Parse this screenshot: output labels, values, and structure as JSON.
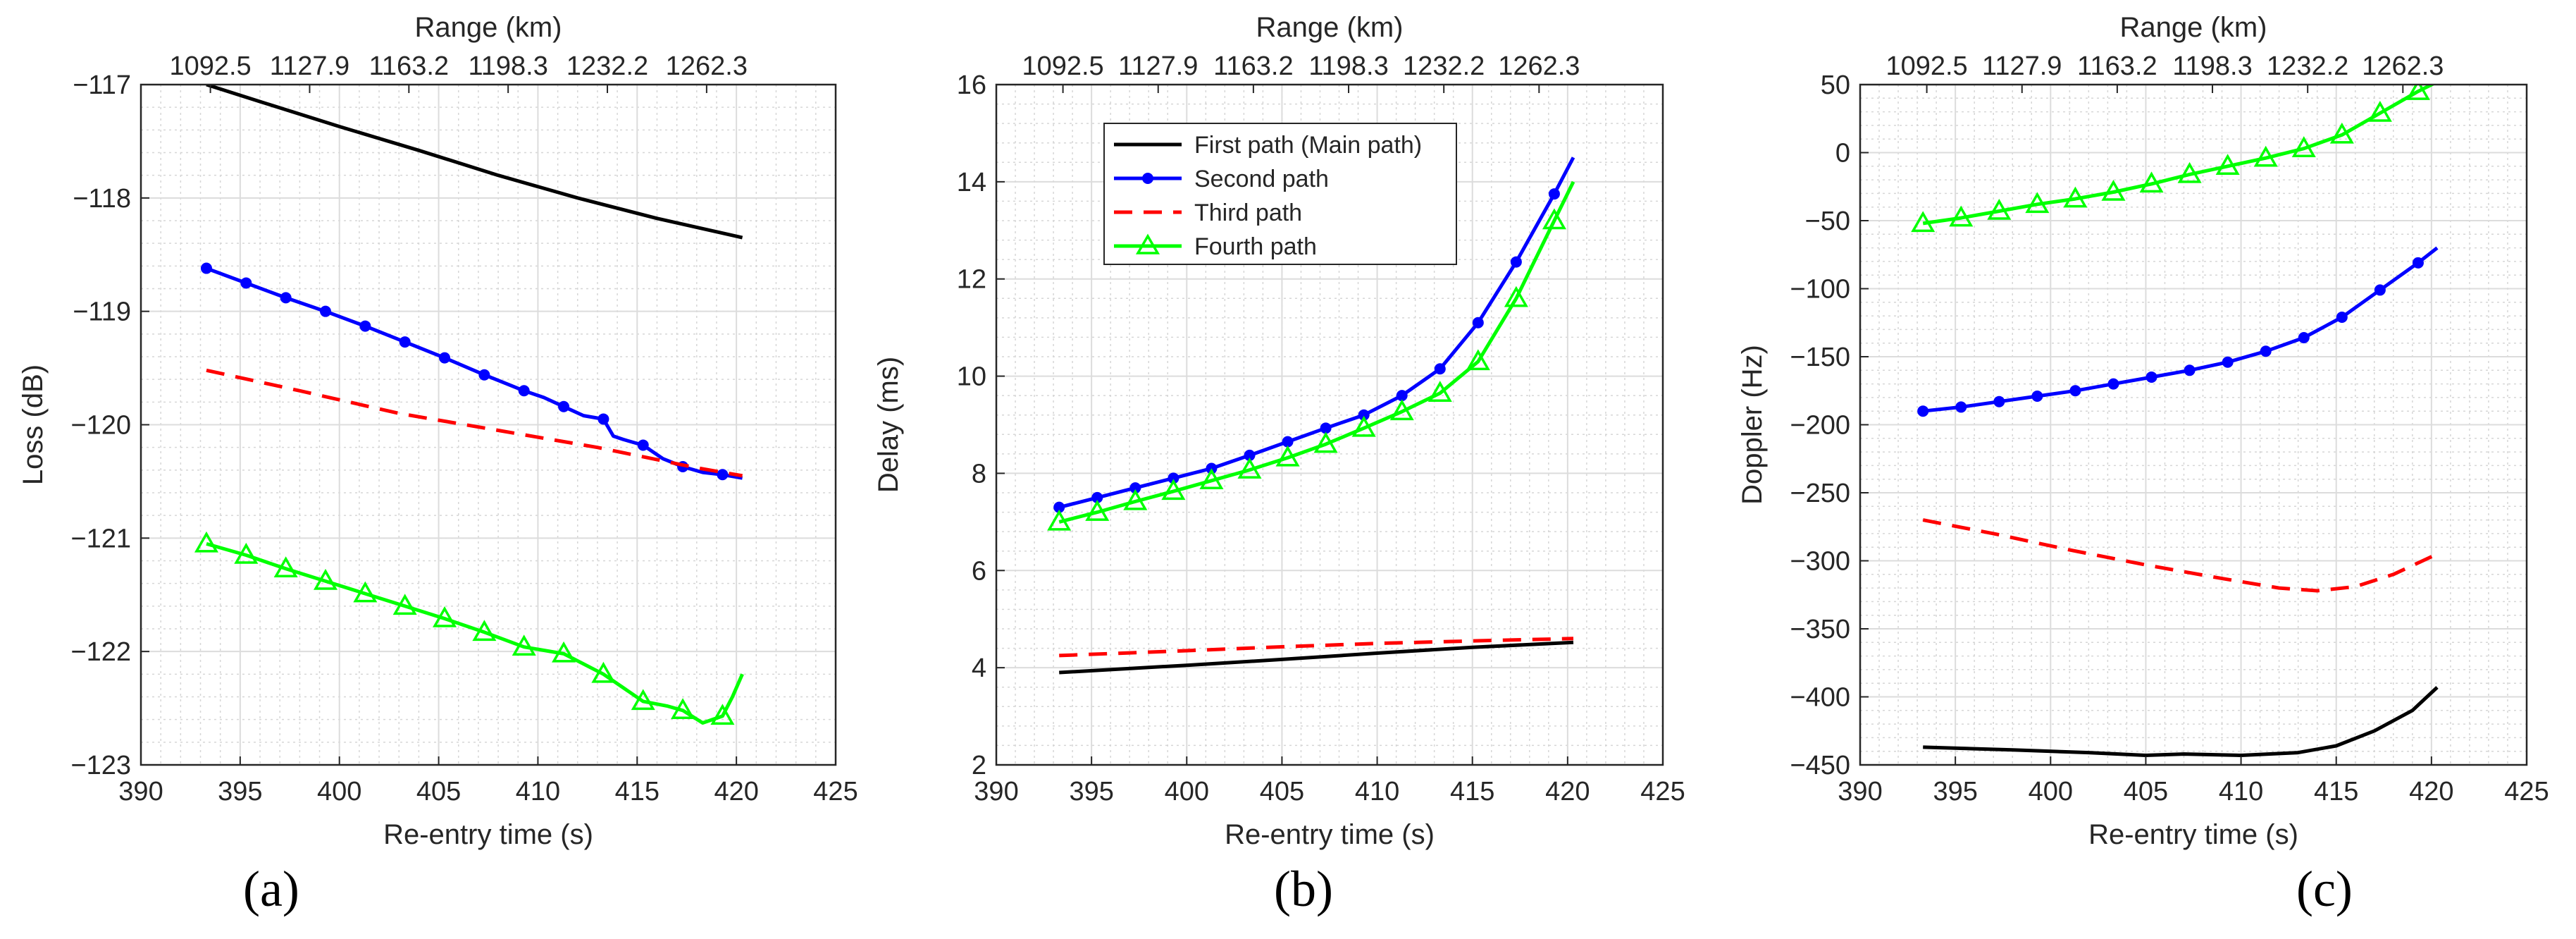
{
  "chart_data": [
    {
      "type": "line",
      "panel_label": "(a)",
      "title": "",
      "xlabel": "Re-entry time (s)",
      "ylabel": "Loss (dB)",
      "top_axis_label": "Range (km)",
      "top_ticks": [
        {
          "x": 393.5,
          "label": "1092.5"
        },
        {
          "x": 398.5,
          "label": "1127.9"
        },
        {
          "x": 403.5,
          "label": "1163.2"
        },
        {
          "x": 408.5,
          "label": "1198.3"
        },
        {
          "x": 413.5,
          "label": "1232.2"
        },
        {
          "x": 418.5,
          "label": "1262.3"
        }
      ],
      "xlim": [
        390,
        425
      ],
      "ylim": [
        -123,
        -117
      ],
      "xticks": [
        390,
        395,
        400,
        405,
        410,
        415,
        420,
        425
      ],
      "yticks": [
        -123,
        -122,
        -121,
        -120,
        -119,
        -118,
        -117
      ],
      "ytick_labels": [
        "−123",
        "−122",
        "−121",
        "−120",
        "−119",
        "−118",
        "−117"
      ],
      "grid": true,
      "series": [
        {
          "name": "First path (Main path)",
          "color": "#000000",
          "style": "solid",
          "marker": "none",
          "x": [
            393.3,
            396,
            400,
            404,
            408,
            412,
            416,
            420.3
          ],
          "y": [
            -117.0,
            -117.15,
            -117.37,
            -117.58,
            -117.8,
            -118.0,
            -118.18,
            -118.35
          ]
        },
        {
          "name": "Second path",
          "color": "#0000ff",
          "style": "solid",
          "marker": "dot",
          "x": [
            393.3,
            395.3,
            397.3,
            399.3,
            401.3,
            403.3,
            405.3,
            407.3,
            409.3,
            410.3,
            411.3,
            412.3,
            413.3,
            413.8,
            414.3,
            415.3,
            416.3,
            417.3,
            418.3,
            419.3,
            420.3
          ],
          "y": [
            -118.62,
            -118.75,
            -118.88,
            -119.0,
            -119.13,
            -119.27,
            -119.41,
            -119.56,
            -119.7,
            -119.76,
            -119.84,
            -119.92,
            -119.95,
            -120.1,
            -120.13,
            -120.18,
            -120.3,
            -120.37,
            -120.42,
            -120.44,
            -120.47
          ],
          "markers_x": [
            393.3,
            395.3,
            397.3,
            399.3,
            401.3,
            403.3,
            405.3,
            407.3,
            409.3,
            411.3,
            413.3,
            415.3,
            417.3,
            419.3
          ]
        },
        {
          "name": "Third path",
          "color": "#ff0000",
          "style": "dashed",
          "marker": "none",
          "x": [
            393.3,
            398,
            403,
            408,
            413,
            418,
            420.3
          ],
          "y": [
            -119.52,
            -119.7,
            -119.9,
            -120.05,
            -120.2,
            -120.38,
            -120.45
          ]
        },
        {
          "name": "Fourth path",
          "color": "#00ff00",
          "style": "solid",
          "marker": "triangle",
          "x": [
            393.3,
            395.3,
            397.3,
            399.3,
            401.3,
            403.3,
            405.3,
            407.3,
            409.3,
            411.3,
            413.3,
            415.3,
            416.5,
            417.3,
            418.3,
            419.3,
            419.8,
            420.3
          ],
          "y": [
            -121.05,
            -121.15,
            -121.27,
            -121.38,
            -121.49,
            -121.6,
            -121.71,
            -121.83,
            -121.96,
            -122.02,
            -122.2,
            -122.44,
            -122.48,
            -122.52,
            -122.63,
            -122.57,
            -122.4,
            -122.2
          ],
          "markers_x": [
            393.3,
            395.3,
            397.3,
            399.3,
            401.3,
            403.3,
            405.3,
            407.3,
            409.3,
            411.3,
            413.3,
            415.3,
            417.3,
            419.3
          ]
        }
      ]
    },
    {
      "type": "line",
      "panel_label": "(b)",
      "title": "",
      "xlabel": "Re-entry time (s)",
      "ylabel": "Delay (ms)",
      "top_axis_label": "Range (km)",
      "top_ticks": [
        {
          "x": 393.5,
          "label": "1092.5"
        },
        {
          "x": 398.5,
          "label": "1127.9"
        },
        {
          "x": 403.5,
          "label": "1163.2"
        },
        {
          "x": 408.5,
          "label": "1198.3"
        },
        {
          "x": 413.5,
          "label": "1232.2"
        },
        {
          "x": 418.5,
          "label": "1262.3"
        }
      ],
      "xlim": [
        390,
        425
      ],
      "ylim": [
        2,
        16
      ],
      "xticks": [
        390,
        395,
        400,
        405,
        410,
        415,
        420,
        425
      ],
      "yticks": [
        2,
        4,
        6,
        8,
        10,
        12,
        14,
        16
      ],
      "ytick_labels": [
        "2",
        "4",
        "6",
        "8",
        "10",
        "12",
        "14",
        "16"
      ],
      "grid": true,
      "legend": {
        "position": "top-left",
        "entries": [
          "First path (Main path)",
          "Second path",
          "Third path",
          "Fourth path"
        ]
      },
      "series": [
        {
          "name": "First path (Main path)",
          "color": "#000000",
          "style": "solid",
          "marker": "none",
          "x": [
            393.3,
            400,
            405,
            410,
            415,
            420.3
          ],
          "y": [
            3.9,
            4.05,
            4.17,
            4.3,
            4.42,
            4.52
          ]
        },
        {
          "name": "Second path",
          "color": "#0000ff",
          "style": "solid",
          "marker": "dot",
          "x": [
            393.3,
            395.3,
            397.3,
            399.3,
            401.3,
            403.3,
            405.3,
            407.3,
            409.3,
            411.3,
            413.3,
            415.3,
            417.3,
            419.3,
            420.3
          ],
          "y": [
            7.3,
            7.5,
            7.7,
            7.9,
            8.1,
            8.37,
            8.65,
            8.93,
            9.2,
            9.6,
            10.15,
            11.1,
            12.35,
            13.75,
            14.5
          ],
          "markers_x": [
            393.3,
            395.3,
            397.3,
            399.3,
            401.3,
            403.3,
            405.3,
            407.3,
            409.3,
            411.3,
            413.3,
            415.3,
            417.3,
            419.3
          ]
        },
        {
          "name": "Third path",
          "color": "#ff0000",
          "style": "dashed",
          "marker": "none",
          "x": [
            393.3,
            400,
            405,
            410,
            415,
            420.3
          ],
          "y": [
            4.25,
            4.35,
            4.43,
            4.5,
            4.55,
            4.6
          ]
        },
        {
          "name": "Fourth path",
          "color": "#00ff00",
          "style": "solid",
          "marker": "triangle",
          "x": [
            393.3,
            395.3,
            397.3,
            399.3,
            401.3,
            403.3,
            405.3,
            407.3,
            409.3,
            411.3,
            413.3,
            415.3,
            417.3,
            419.3,
            420.3
          ],
          "y": [
            7.0,
            7.2,
            7.42,
            7.63,
            7.85,
            8.07,
            8.32,
            8.6,
            8.93,
            9.27,
            9.65,
            10.3,
            11.6,
            13.2,
            14.0
          ],
          "markers_x": [
            393.3,
            395.3,
            397.3,
            399.3,
            401.3,
            403.3,
            405.3,
            407.3,
            409.3,
            411.3,
            413.3,
            415.3,
            417.3,
            419.3
          ]
        }
      ]
    },
    {
      "type": "line",
      "panel_label": "(c)",
      "title": "",
      "xlabel": "Re-entry time (s)",
      "ylabel": "Doppler (Hz)",
      "top_axis_label": "Range (km)",
      "top_ticks": [
        {
          "x": 393.5,
          "label": "1092.5"
        },
        {
          "x": 398.5,
          "label": "1127.9"
        },
        {
          "x": 403.5,
          "label": "1163.2"
        },
        {
          "x": 408.5,
          "label": "1198.3"
        },
        {
          "x": 413.5,
          "label": "1232.2"
        },
        {
          "x": 418.5,
          "label": "1262.3"
        }
      ],
      "xlim": [
        390,
        425
      ],
      "ylim": [
        -450,
        50
      ],
      "xticks": [
        390,
        395,
        400,
        405,
        410,
        415,
        420,
        425
      ],
      "yticks": [
        -450,
        -400,
        -350,
        -300,
        -250,
        -200,
        -150,
        -100,
        -50,
        0,
        50
      ],
      "ytick_labels": [
        "−450",
        "−400",
        "−350",
        "−300",
        "−250",
        "−200",
        "−150",
        "−100",
        "−50",
        "0",
        "50"
      ],
      "grid": true,
      "series": [
        {
          "name": "First path (Main path)",
          "color": "#000000",
          "style": "solid",
          "marker": "none",
          "x": [
            393.3,
            398,
            402,
            405,
            407,
            410,
            413,
            415,
            417,
            419,
            420.3
          ],
          "y": [
            -437,
            -439,
            -441,
            -443,
            -442,
            -443,
            -441,
            -436,
            -425,
            -410,
            -393
          ]
        },
        {
          "name": "Second path",
          "color": "#0000ff",
          "style": "solid",
          "marker": "dot",
          "x": [
            393.3,
            395.3,
            397.3,
            399.3,
            401.3,
            403.3,
            405.3,
            407.3,
            409.3,
            411.3,
            413.3,
            415.3,
            417.3,
            419.3,
            420.3
          ],
          "y": [
            -190,
            -187,
            -183,
            -179,
            -175,
            -170,
            -165,
            -160,
            -154,
            -146,
            -136,
            -121,
            -101,
            -81,
            -70
          ],
          "markers_x": [
            393.3,
            395.3,
            397.3,
            399.3,
            401.3,
            403.3,
            405.3,
            407.3,
            409.3,
            411.3,
            413.3,
            415.3,
            417.3,
            419.3
          ]
        },
        {
          "name": "Third path",
          "color": "#ff0000",
          "style": "dashed",
          "marker": "none",
          "x": [
            393.3,
            397,
            401,
            405,
            409,
            412,
            414,
            416,
            418,
            420.3
          ],
          "y": [
            -270,
            -280,
            -292,
            -303,
            -313,
            -320,
            -322,
            -319,
            -310,
            -295
          ]
        },
        {
          "name": "Fourth path",
          "color": "#00ff00",
          "style": "solid",
          "marker": "triangle",
          "x": [
            393.3,
            395.3,
            397.3,
            399.3,
            401.3,
            403.3,
            405.3,
            407.3,
            409.3,
            411.3,
            413.3,
            415.3,
            417.3,
            419.3,
            420.3
          ],
          "y": [
            -52,
            -48,
            -43,
            -38,
            -34,
            -29,
            -23,
            -16,
            -10,
            -4,
            3,
            13,
            29,
            45,
            52
          ],
          "markers_x": [
            393.3,
            395.3,
            397.3,
            399.3,
            401.3,
            403.3,
            405.3,
            407.3,
            409.3,
            411.3,
            413.3,
            415.3,
            417.3,
            419.3
          ]
        }
      ]
    }
  ]
}
